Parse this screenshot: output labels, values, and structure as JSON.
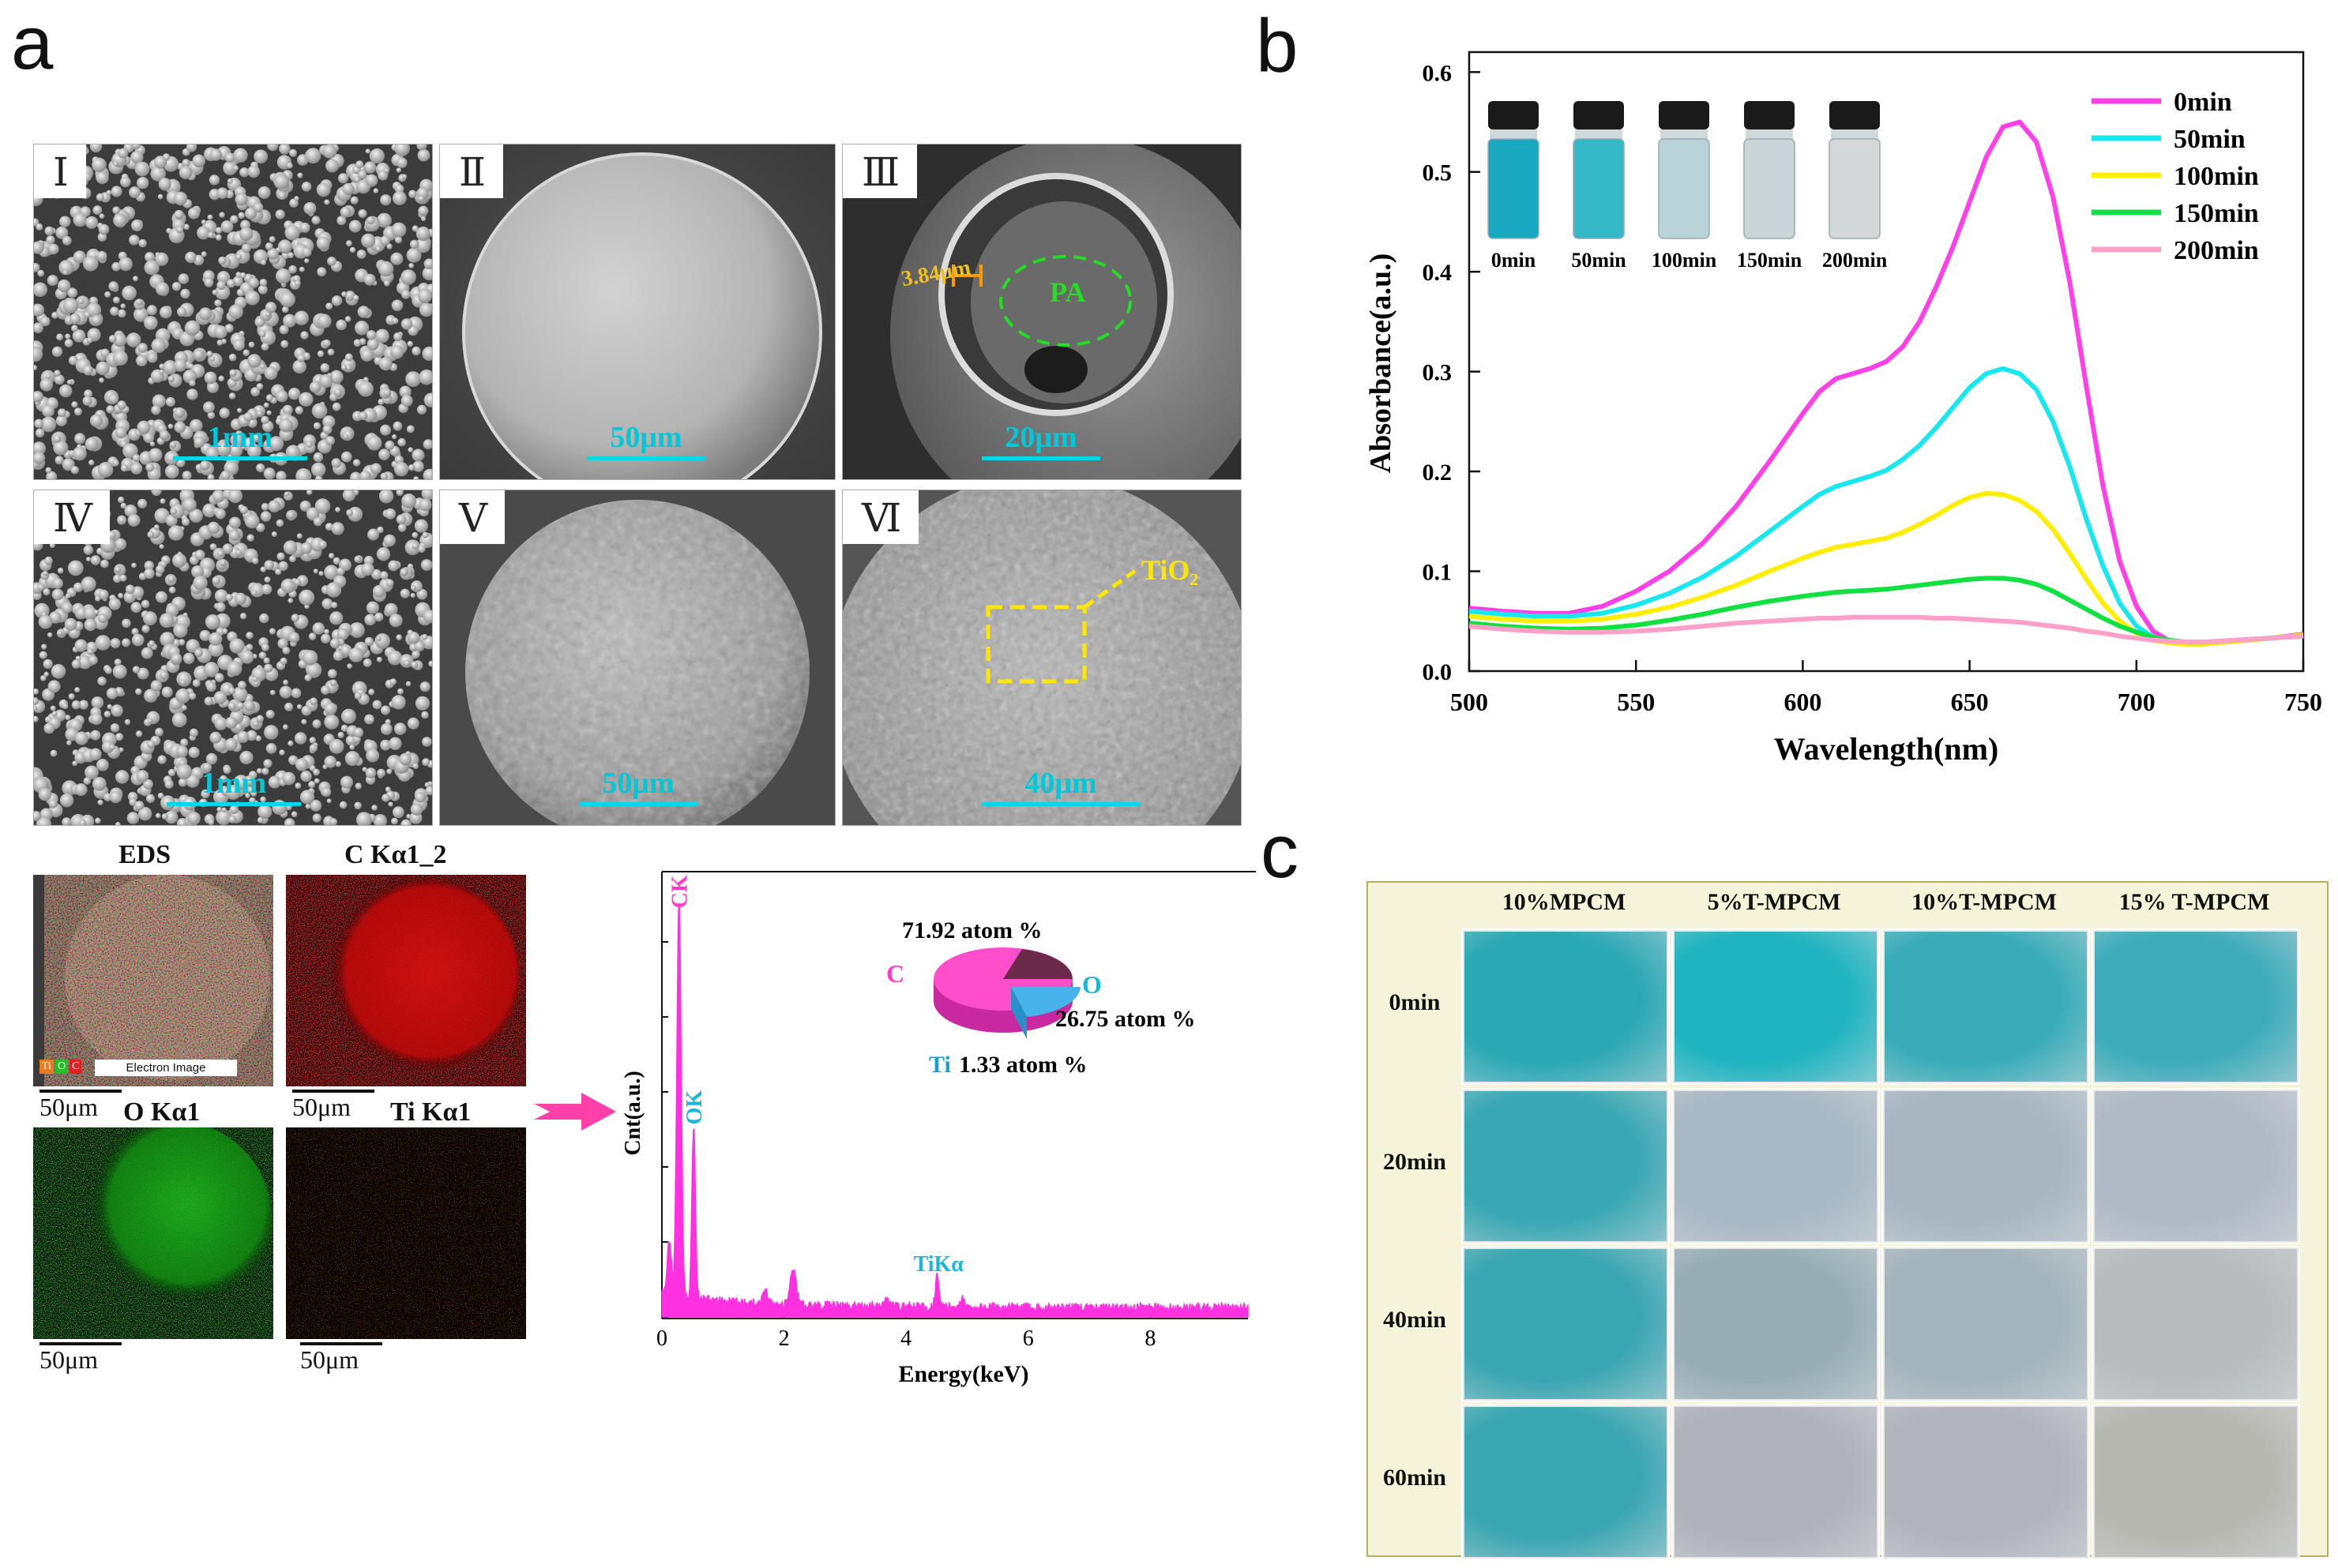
{
  "panel_letters": {
    "a": "a",
    "b": "b",
    "c": "c"
  },
  "sem_images": [
    {
      "roman": "Ⅰ",
      "scale": "1mm",
      "type": "particles"
    },
    {
      "roman": "Ⅱ",
      "scale": "50μm",
      "type": "smooth"
    },
    {
      "roman": "Ⅲ",
      "scale": "20μm",
      "type": "broken"
    },
    {
      "roman": "Ⅳ",
      "scale": "1mm",
      "type": "particles"
    },
    {
      "roman": "Ⅴ",
      "scale": "50μm",
      "type": "rough"
    },
    {
      "roman": "Ⅵ",
      "scale": "40μm",
      "type": "rough"
    }
  ],
  "sem3_labels": {
    "thickness": "3.84μm",
    "core": "PA"
  },
  "sem6_label": "TiO₂",
  "eds_maps": [
    {
      "title": "EDS",
      "scale": "50μm",
      "legend": [
        "Ti",
        "O",
        "C"
      ],
      "caption": "Electron Image"
    },
    {
      "title": "C Kα1_2",
      "scale": "50μm"
    },
    {
      "title": "O Kα1",
      "scale": "50μm"
    },
    {
      "title": "Ti Kα1",
      "scale": "50μm"
    }
  ],
  "eds_spectrum": {
    "type": "spectrum",
    "xlabel": "Energy(keV)",
    "ylabel": "Cnt(a.u.)",
    "xlim": [
      0,
      9.6
    ],
    "xticks": [
      "0",
      "2",
      "4",
      "6",
      "8"
    ],
    "peaks": [
      {
        "label": "CK",
        "energy": 0.28,
        "height": 0.93
      },
      {
        "label": "OK",
        "energy": 0.52,
        "height": 0.43
      },
      {
        "label": "TiKα",
        "energy": 4.51,
        "height": 0.08
      }
    ],
    "composition": {
      "title": "71.92 atom %",
      "items": [
        {
          "element": "C",
          "value": 71.92,
          "label": "71.92 atom %",
          "color": "#ff3fc8"
        },
        {
          "element": "O",
          "value": 26.75,
          "label": "26.75 atom %",
          "color": "#3fb0e8"
        },
        {
          "element": "Ti",
          "value": 1.33,
          "label": "1.33 atom %",
          "color": "#6b2a4a"
        }
      ]
    }
  },
  "chart_data": {
    "type": "line",
    "title": "",
    "xlabel": "Wavelength(nm)",
    "ylabel": "Absorbance(a.u.)",
    "xlim": [
      500,
      750
    ],
    "ylim": [
      0,
      0.62
    ],
    "xticks": [
      500,
      550,
      600,
      650,
      700,
      750
    ],
    "yticks": [
      0.0,
      0.1,
      0.2,
      0.3,
      0.4,
      0.5,
      0.6
    ],
    "x": [
      500,
      510,
      520,
      530,
      540,
      550,
      560,
      570,
      580,
      590,
      600,
      605,
      610,
      615,
      620,
      625,
      630,
      635,
      640,
      645,
      650,
      655,
      660,
      665,
      670,
      675,
      680,
      685,
      690,
      695,
      700,
      705,
      710,
      715,
      720,
      730,
      740,
      750
    ],
    "series": [
      {
        "name": "0min",
        "color": "#ff3fe8",
        "values": [
          0.063,
          0.06,
          0.058,
          0.058,
          0.065,
          0.08,
          0.1,
          0.128,
          0.165,
          0.21,
          0.258,
          0.28,
          0.293,
          0.298,
          0.303,
          0.31,
          0.325,
          0.35,
          0.385,
          0.425,
          0.47,
          0.515,
          0.545,
          0.55,
          0.53,
          0.475,
          0.39,
          0.285,
          0.185,
          0.11,
          0.065,
          0.04,
          0.03,
          0.027,
          0.027,
          0.03,
          0.033,
          0.037
        ]
      },
      {
        "name": "50min",
        "color": "#17e8f0",
        "values": [
          0.06,
          0.057,
          0.055,
          0.055,
          0.058,
          0.066,
          0.078,
          0.094,
          0.115,
          0.14,
          0.165,
          0.177,
          0.185,
          0.19,
          0.195,
          0.201,
          0.212,
          0.226,
          0.244,
          0.264,
          0.284,
          0.298,
          0.303,
          0.298,
          0.282,
          0.25,
          0.205,
          0.152,
          0.105,
          0.068,
          0.045,
          0.034,
          0.029,
          0.027,
          0.027,
          0.03,
          0.033,
          0.036
        ]
      },
      {
        "name": "100min",
        "color": "#ffee00",
        "values": [
          0.055,
          0.052,
          0.05,
          0.05,
          0.052,
          0.057,
          0.064,
          0.074,
          0.086,
          0.1,
          0.113,
          0.119,
          0.124,
          0.127,
          0.13,
          0.133,
          0.139,
          0.147,
          0.156,
          0.166,
          0.174,
          0.178,
          0.177,
          0.171,
          0.16,
          0.142,
          0.118,
          0.092,
          0.068,
          0.05,
          0.038,
          0.031,
          0.028,
          0.027,
          0.027,
          0.03,
          0.033,
          0.036
        ]
      },
      {
        "name": "150min",
        "color": "#10e040",
        "values": [
          0.048,
          0.045,
          0.043,
          0.042,
          0.043,
          0.046,
          0.051,
          0.057,
          0.064,
          0.07,
          0.075,
          0.077,
          0.079,
          0.08,
          0.081,
          0.082,
          0.084,
          0.086,
          0.088,
          0.09,
          0.092,
          0.093,
          0.093,
          0.091,
          0.087,
          0.08,
          0.071,
          0.062,
          0.053,
          0.045,
          0.039,
          0.034,
          0.031,
          0.029,
          0.029,
          0.031,
          0.033,
          0.035
        ]
      },
      {
        "name": "200min",
        "color": "#ffa0c8",
        "values": [
          0.045,
          0.042,
          0.04,
          0.039,
          0.039,
          0.04,
          0.042,
          0.045,
          0.048,
          0.05,
          0.052,
          0.053,
          0.053,
          0.054,
          0.054,
          0.054,
          0.054,
          0.054,
          0.053,
          0.053,
          0.052,
          0.051,
          0.05,
          0.049,
          0.047,
          0.045,
          0.043,
          0.04,
          0.038,
          0.035,
          0.033,
          0.031,
          0.03,
          0.029,
          0.029,
          0.031,
          0.033,
          0.035
        ]
      }
    ],
    "inset_vials": [
      {
        "label": "0min",
        "color": "#1aa8c0"
      },
      {
        "label": "50min",
        "color": "#35b8c8"
      },
      {
        "label": "100min",
        "color": "#b8d4d8"
      },
      {
        "label": "150min",
        "color": "#c8d4d6"
      },
      {
        "label": "200min",
        "color": "#d4d8d8"
      }
    ]
  },
  "panel_c": {
    "columns": [
      "10%MPCM",
      "5%T-MPCM",
      "10%T-MPCM",
      "15% T-MPCM"
    ],
    "rows": [
      "0min",
      "20min",
      "40min",
      "60min"
    ],
    "swatches": [
      [
        "#2aa8b4",
        "#1fb4c0",
        "#38acb8",
        "#3eacba"
      ],
      [
        "#3aa8b4",
        "#a8b8c4",
        "#a8b6c2",
        "#b0bac6"
      ],
      [
        "#3aa6b2",
        "#98aeb6",
        "#a4b4bc",
        "#b8bcbc"
      ],
      [
        "#3aa6b2",
        "#b0b2ba",
        "#b2b4bc",
        "#b8b8b2"
      ]
    ]
  }
}
